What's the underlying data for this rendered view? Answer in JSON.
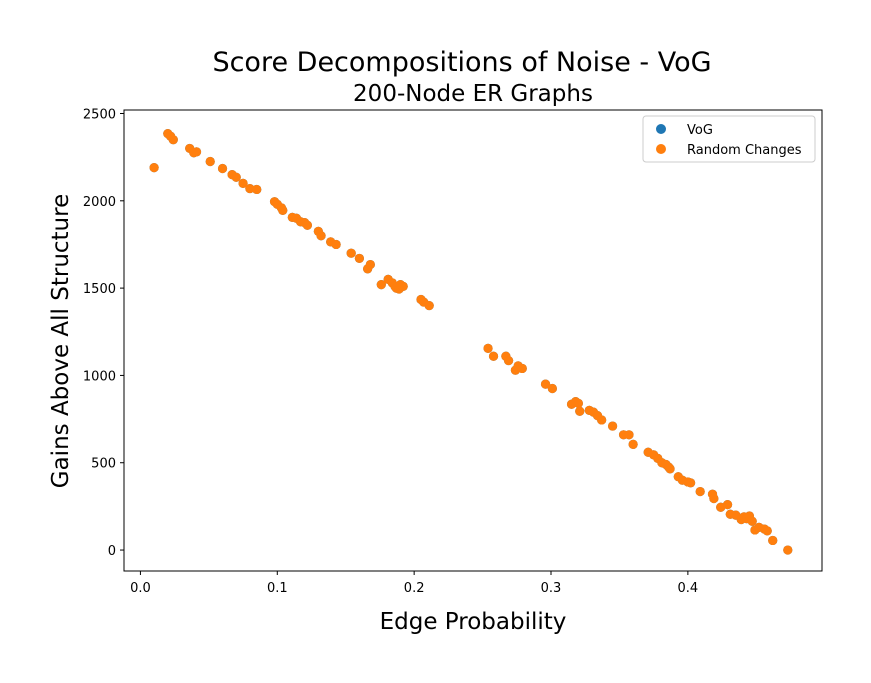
{
  "chart_data": {
    "type": "scatter",
    "title": "Score Decompositions of Noise - VoG",
    "subtitle": "200-Node ER Graphs",
    "xlabel": "Edge Probability",
    "ylabel": "Gains Above All Structure",
    "xlim": [
      -0.012,
      0.498
    ],
    "ylim": [
      -120,
      2520
    ],
    "xticks": [
      0.0,
      0.1,
      0.2,
      0.3,
      0.4
    ],
    "xtick_labels": [
      "0.0",
      "0.1",
      "0.2",
      "0.3",
      "0.4"
    ],
    "yticks": [
      0,
      500,
      1000,
      1500,
      2000,
      2500
    ],
    "ytick_labels": [
      "0",
      "500",
      "1000",
      "1500",
      "2000",
      "2500"
    ],
    "grid": false,
    "legend_position": "top-right",
    "colors": {
      "VoG": "#1f77b4",
      "Random Changes": "#ff7f0e"
    },
    "series": [
      {
        "name": "VoG",
        "color": "#1f77b4",
        "x": [
          0.01,
          0.02,
          0.022,
          0.024,
          0.036,
          0.039,
          0.041,
          0.051,
          0.06,
          0.067,
          0.07,
          0.075,
          0.08,
          0.085,
          0.098,
          0.1,
          0.103,
          0.104,
          0.111,
          0.114,
          0.117,
          0.12,
          0.122,
          0.13,
          0.132,
          0.139,
          0.143,
          0.154,
          0.16,
          0.166,
          0.168,
          0.176,
          0.181,
          0.184,
          0.186,
          0.187,
          0.189,
          0.19,
          0.192,
          0.205,
          0.207,
          0.211,
          0.254,
          0.258,
          0.267,
          0.269,
          0.274,
          0.276,
          0.279,
          0.296,
          0.301,
          0.315,
          0.318,
          0.32,
          0.321,
          0.328,
          0.331,
          0.334,
          0.337,
          0.345,
          0.353,
          0.357,
          0.36,
          0.371,
          0.375,
          0.378,
          0.381,
          0.384,
          0.386,
          0.387,
          0.393,
          0.396,
          0.4,
          0.402,
          0.409,
          0.418,
          0.419,
          0.424,
          0.429,
          0.431,
          0.435,
          0.439,
          0.441,
          0.443,
          0.445,
          0.447,
          0.449,
          0.452,
          0.456,
          0.458,
          0.462,
          0.473
        ],
        "y": [
          2190,
          2385,
          2370,
          2350,
          2300,
          2275,
          2280,
          2225,
          2185,
          2150,
          2135,
          2100,
          2070,
          2065,
          1995,
          1980,
          1960,
          1945,
          1905,
          1900,
          1880,
          1875,
          1860,
          1825,
          1800,
          1765,
          1750,
          1700,
          1670,
          1610,
          1635,
          1520,
          1550,
          1530,
          1510,
          1500,
          1495,
          1520,
          1510,
          1435,
          1420,
          1400,
          1155,
          1110,
          1110,
          1085,
          1030,
          1055,
          1040,
          950,
          925,
          835,
          850,
          840,
          795,
          800,
          790,
          770,
          745,
          710,
          660,
          660,
          605,
          560,
          545,
          525,
          500,
          490,
          475,
          465,
          420,
          400,
          390,
          385,
          335,
          320,
          295,
          245,
          260,
          205,
          200,
          175,
          190,
          180,
          195,
          165,
          115,
          130,
          120,
          110,
          55,
          0
        ]
      },
      {
        "name": "Random Changes",
        "color": "#ff7f0e",
        "x": [
          0.01,
          0.02,
          0.022,
          0.024,
          0.036,
          0.039,
          0.041,
          0.051,
          0.06,
          0.067,
          0.07,
          0.075,
          0.08,
          0.085,
          0.098,
          0.1,
          0.103,
          0.104,
          0.111,
          0.114,
          0.117,
          0.12,
          0.122,
          0.13,
          0.132,
          0.139,
          0.143,
          0.154,
          0.16,
          0.166,
          0.168,
          0.176,
          0.181,
          0.184,
          0.186,
          0.187,
          0.189,
          0.19,
          0.192,
          0.205,
          0.207,
          0.211,
          0.254,
          0.258,
          0.267,
          0.269,
          0.274,
          0.276,
          0.279,
          0.296,
          0.301,
          0.315,
          0.318,
          0.32,
          0.321,
          0.328,
          0.331,
          0.334,
          0.337,
          0.345,
          0.353,
          0.357,
          0.36,
          0.371,
          0.375,
          0.378,
          0.381,
          0.384,
          0.386,
          0.387,
          0.393,
          0.396,
          0.4,
          0.402,
          0.409,
          0.418,
          0.419,
          0.424,
          0.429,
          0.431,
          0.435,
          0.439,
          0.441,
          0.443,
          0.445,
          0.447,
          0.449,
          0.452,
          0.456,
          0.458,
          0.462,
          0.473
        ],
        "y": [
          2190,
          2385,
          2370,
          2350,
          2300,
          2275,
          2280,
          2225,
          2185,
          2150,
          2135,
          2100,
          2070,
          2065,
          1995,
          1980,
          1960,
          1945,
          1905,
          1900,
          1880,
          1875,
          1860,
          1825,
          1800,
          1765,
          1750,
          1700,
          1670,
          1610,
          1635,
          1520,
          1550,
          1530,
          1510,
          1500,
          1495,
          1520,
          1510,
          1435,
          1420,
          1400,
          1155,
          1110,
          1110,
          1085,
          1030,
          1055,
          1040,
          950,
          925,
          835,
          850,
          840,
          795,
          800,
          790,
          770,
          745,
          710,
          660,
          660,
          605,
          560,
          545,
          525,
          500,
          490,
          475,
          465,
          420,
          400,
          390,
          385,
          335,
          320,
          295,
          245,
          260,
          205,
          200,
          175,
          190,
          180,
          195,
          165,
          115,
          130,
          120,
          110,
          55,
          0
        ]
      }
    ]
  }
}
